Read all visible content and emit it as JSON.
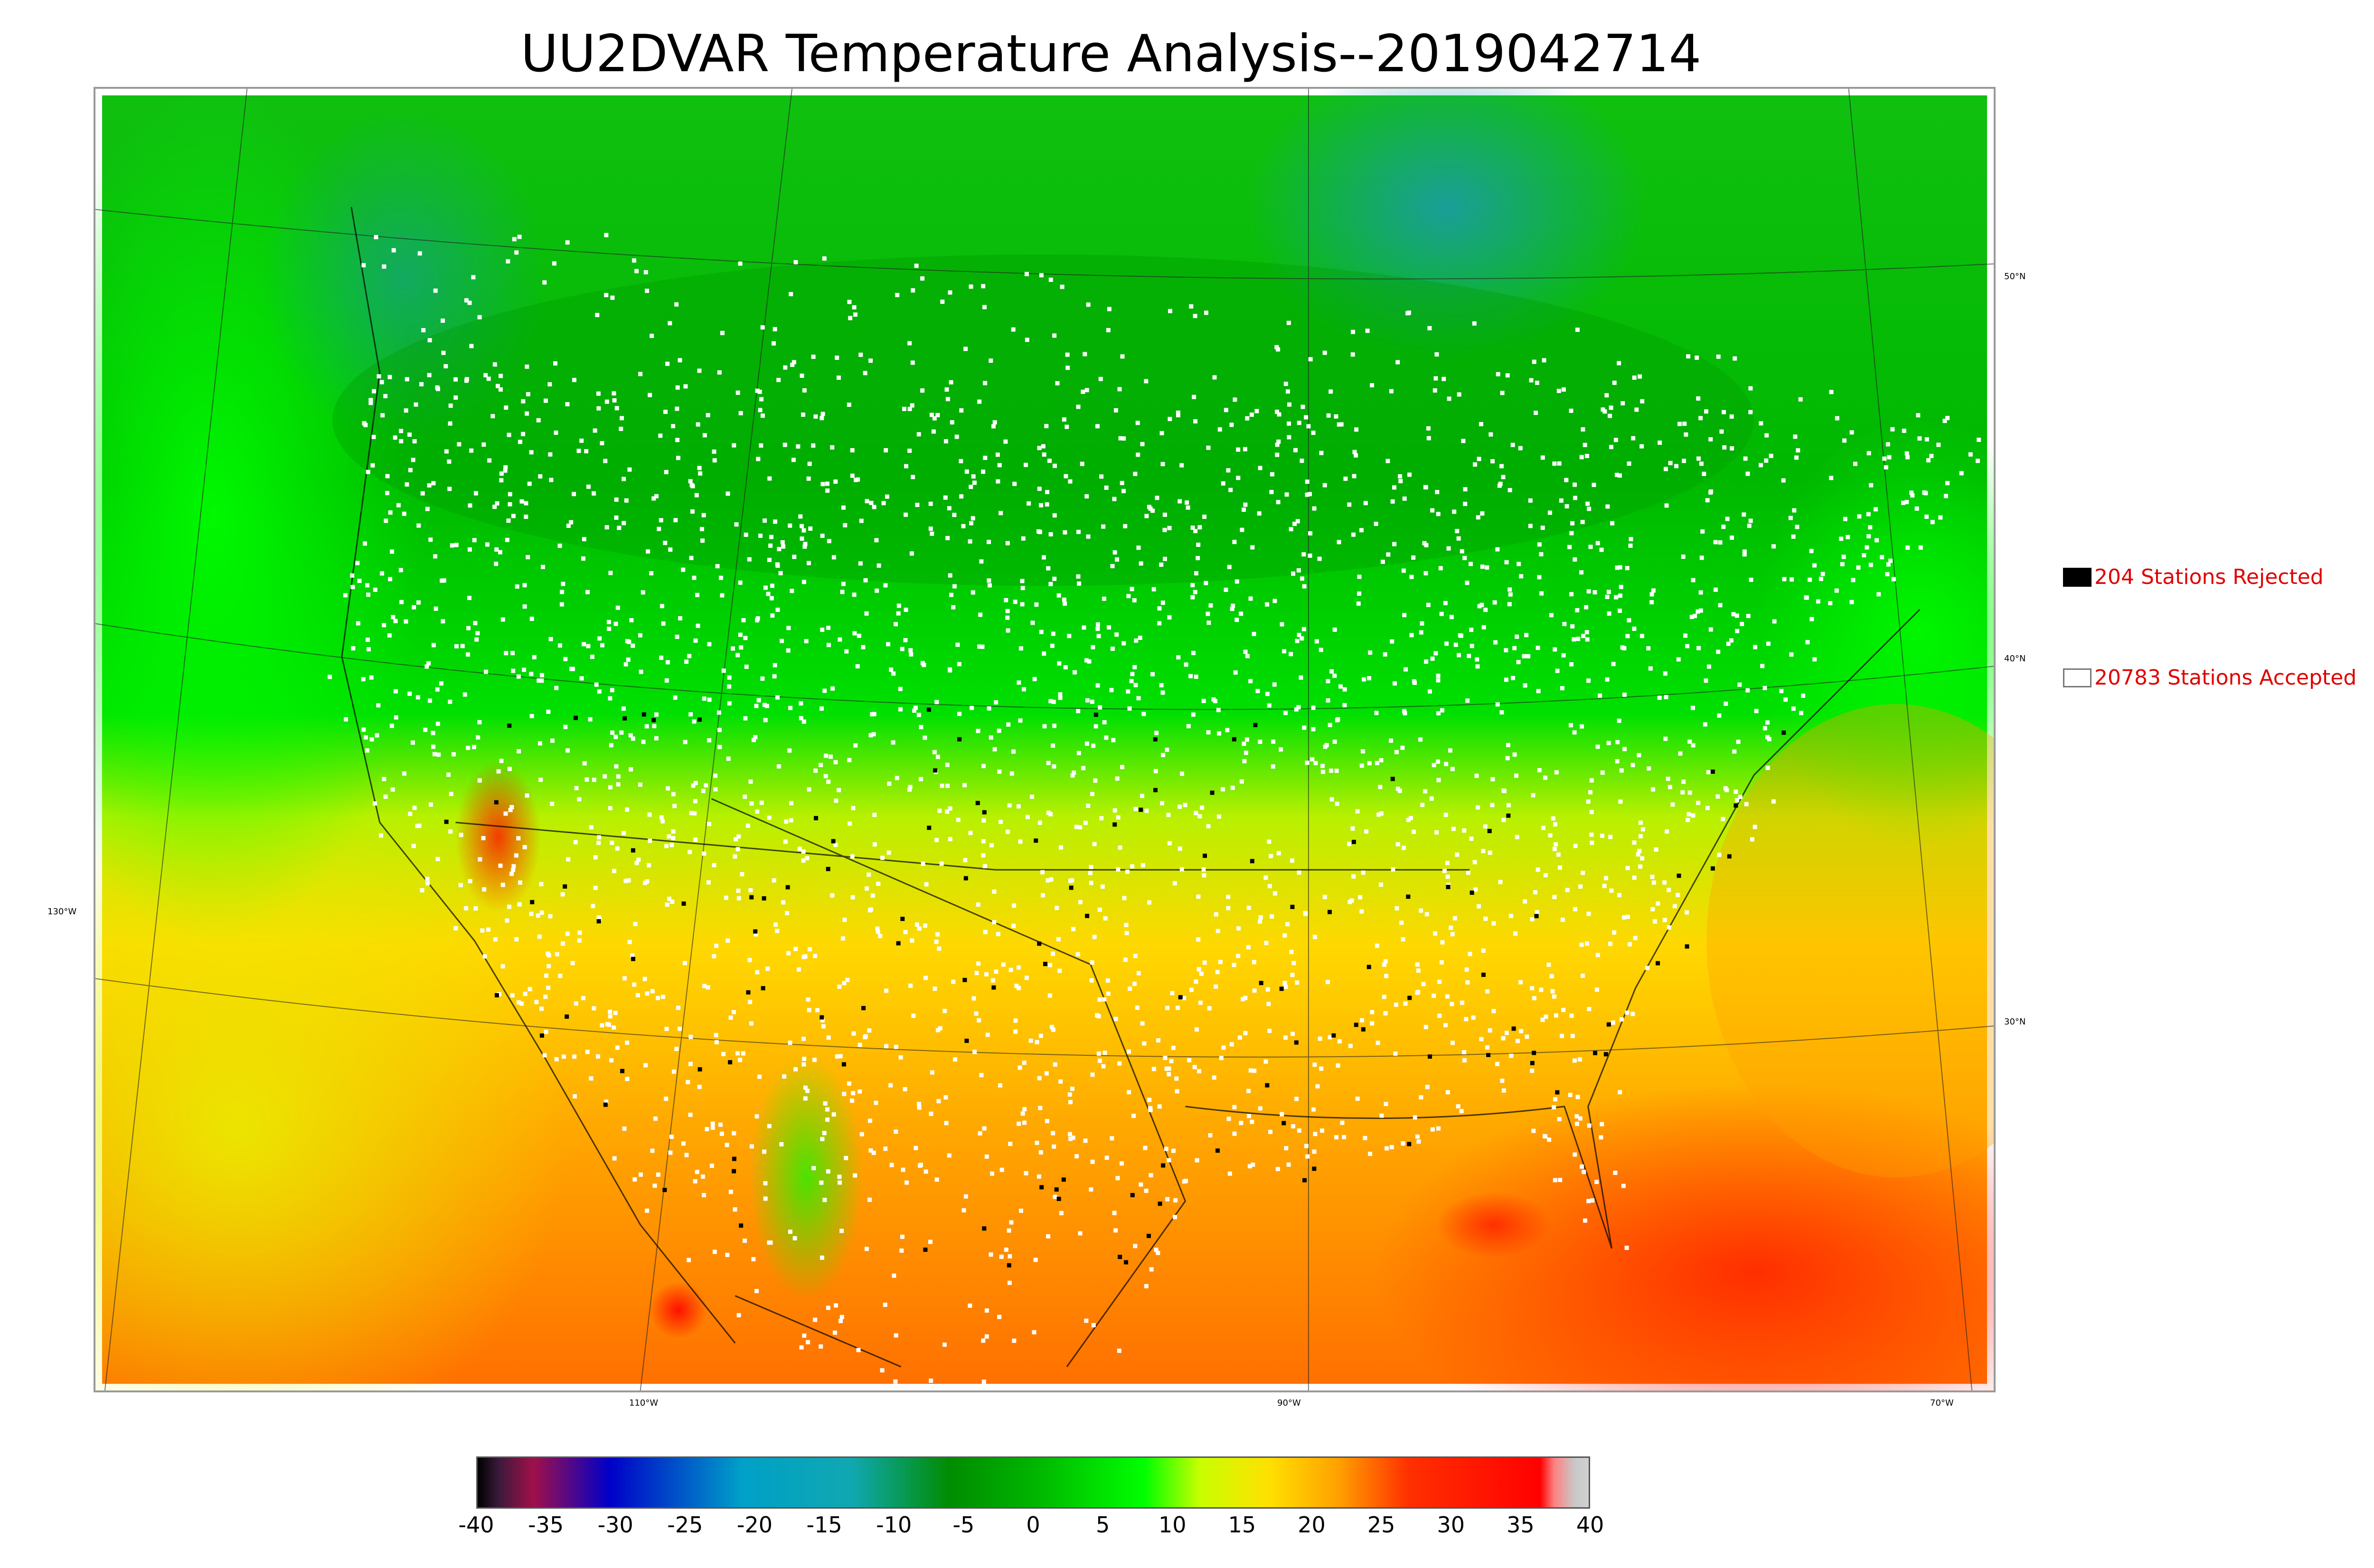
{
  "title": "UU2DVAR Temperature Analysis--2019042714",
  "map": {
    "lat_labels": [
      "50°N",
      "40°N",
      "30°N"
    ],
    "lon_labels": [
      "130°W",
      "110°W",
      "90°W",
      "70°W"
    ],
    "palette": {
      "cold_north": "#00a000",
      "deep_cold": "#1b9aa8",
      "mid_green": "#00d800",
      "bright_green": "#00ff00",
      "yellow_green": "#c8f000",
      "yellow": "#ffe000",
      "orange": "#ffa000",
      "red_orange": "#ff5000",
      "red": "#ff1000",
      "station_accepted": "#ffffff",
      "station_rejected": "#000000"
    }
  },
  "legend": {
    "rejected": {
      "count": 204,
      "label": "204 Stations Rejected",
      "color": "#000000"
    },
    "accepted": {
      "count": 20783,
      "label": "20783 Stations Accepted",
      "color": "#ffffff"
    }
  },
  "colorbar": {
    "min": -40,
    "max": 40,
    "ticks": [
      "-40",
      "-35",
      "-30",
      "-25",
      "-20",
      "-15",
      "-10",
      "-5",
      "0",
      "5",
      "10",
      "15",
      "20",
      "25",
      "30",
      "35",
      "40"
    ],
    "stops": [
      {
        "value": -40,
        "color": "#000000"
      },
      {
        "value": -38.5,
        "color": "#3a1a3a"
      },
      {
        "value": -36,
        "color": "#a0104a"
      },
      {
        "value": -30.5,
        "color": "#0000c8"
      },
      {
        "value": -21,
        "color": "#00a0c8"
      },
      {
        "value": -13,
        "color": "#10a8b0"
      },
      {
        "value": -6,
        "color": "#008c00"
      },
      {
        "value": 0,
        "color": "#00b400"
      },
      {
        "value": 8,
        "color": "#00ff00"
      },
      {
        "value": 12,
        "color": "#c8ff00"
      },
      {
        "value": 17,
        "color": "#ffe000"
      },
      {
        "value": 22,
        "color": "#ffa000"
      },
      {
        "value": 27,
        "color": "#ff3000"
      },
      {
        "value": 36.5,
        "color": "#ff0000"
      },
      {
        "value": 37.5,
        "color": "#ff8080"
      },
      {
        "value": 39,
        "color": "#c8c8c8"
      },
      {
        "value": 40,
        "color": "#d0d0d0"
      }
    ]
  }
}
